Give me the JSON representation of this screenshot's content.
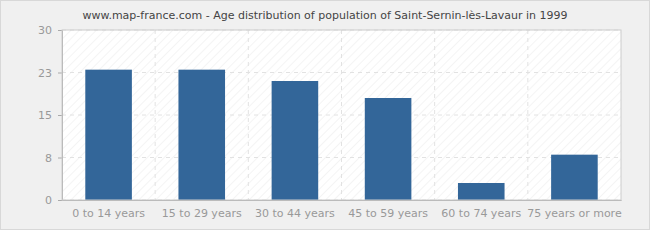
{
  "chart_data": {
    "type": "bar",
    "title": "www.map-france.com - Age distribution of population of Saint-Sernin-lès-Lavaur in 1999",
    "categories": [
      "0 to 14 years",
      "15 to 29 years",
      "30 to 44 years",
      "45 to 59 years",
      "60 to 74 years",
      "75 years or more"
    ],
    "values": [
      23,
      23,
      21,
      18,
      3,
      8
    ],
    "color": "#336699",
    "ylim": [
      0,
      30
    ],
    "yticks": [
      0,
      {
        "value": 7.5,
        "label": "8"
      },
      15,
      {
        "value": 22.5,
        "label": "23"
      },
      30
    ],
    "grid": true
  }
}
